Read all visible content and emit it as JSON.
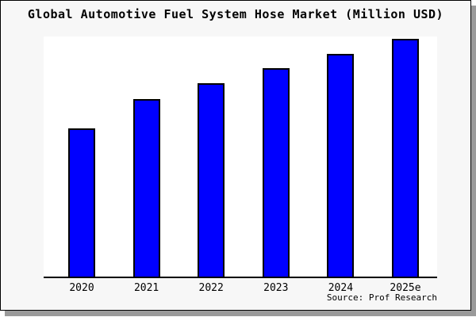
{
  "chart_data": {
    "type": "bar",
    "title": "Global Automotive Fuel System Hose Market (Million USD)",
    "categories": [
      "2020",
      "2021",
      "2022",
      "2023",
      "2024",
      "2025e"
    ],
    "values": [
      187,
      224,
      244,
      263,
      281,
      300
    ],
    "values_note": "y-axis has no tick labels in the image; values are relative bar heights (pixels) on a 0-303 plot scale",
    "ylim": [
      0,
      303
    ],
    "xlabel": "",
    "ylabel": "",
    "grid": false,
    "legend": false,
    "bar_color": "#0000ff",
    "bar_border_color": "#000000",
    "plot_background": "#ffffff",
    "panel_background": "#f7f7f7",
    "axis_color": "#000000",
    "source": "Source: Prof Research"
  }
}
